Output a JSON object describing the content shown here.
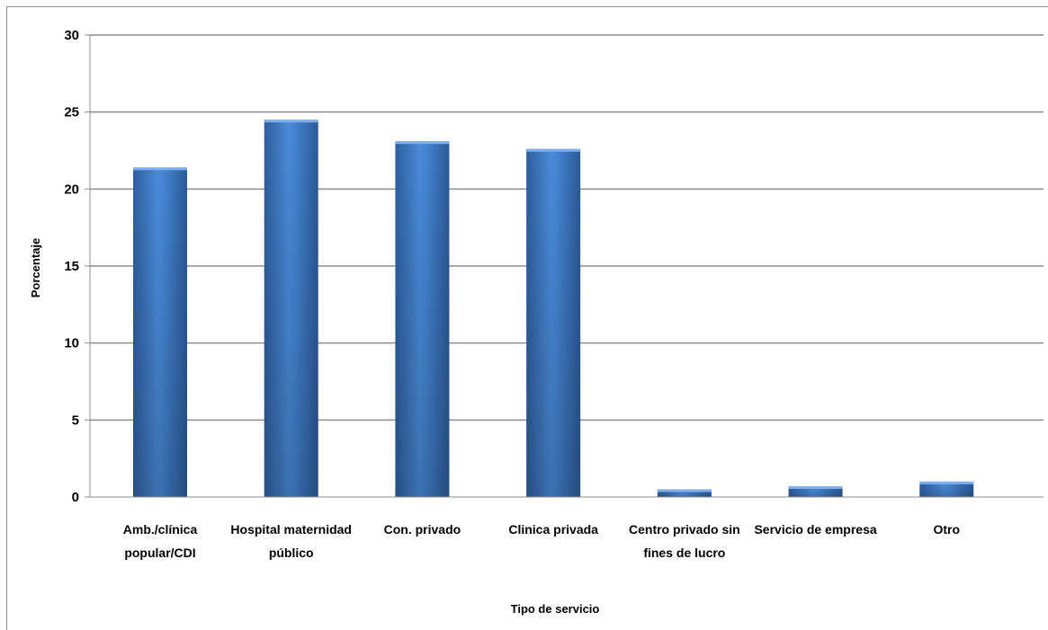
{
  "chart_data": {
    "type": "bar",
    "categories": [
      [
        "Amb./clínica",
        "popular/CDI"
      ],
      [
        "Hospital maternidad",
        "público"
      ],
      [
        "Con. privado"
      ],
      [
        "Clinica privada"
      ],
      [
        "Centro privado sin",
        "fines de lucro"
      ],
      [
        "Servicio de empresa"
      ],
      [
        "Otro"
      ]
    ],
    "values": [
      21.4,
      24.5,
      23.1,
      22.6,
      0.5,
      0.7,
      1.0
    ],
    "xlabel": "Tipo de servicio",
    "ylabel": "Porcentaje",
    "ylim": [
      0,
      30
    ],
    "yticks": [
      "0",
      "5",
      "10",
      "15",
      "20",
      "25",
      "30"
    ],
    "grid": true,
    "bar_color": "#3f7fcf"
  }
}
